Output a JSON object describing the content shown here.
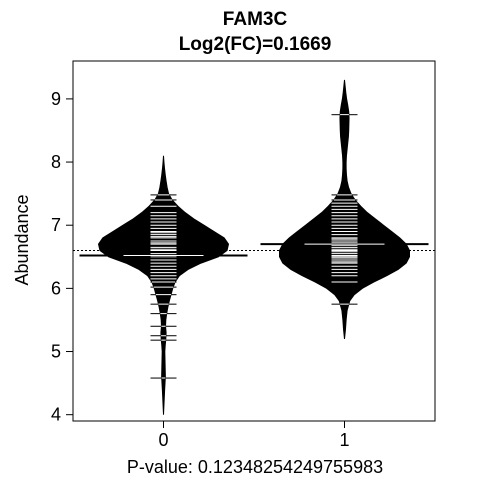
{
  "chart_data": {
    "type": "beanplot",
    "title": "FAM3C",
    "subtitle": "Log2(FC)=0.1669",
    "xlabel": "P-value: 0.12348254249755983",
    "ylabel": "Abundance",
    "categories": [
      "0",
      "1"
    ],
    "xlim": [
      0.5,
      2.5
    ],
    "ylim": [
      3.9,
      9.6
    ],
    "y_ticks": [
      4,
      5,
      6,
      7,
      8,
      9
    ],
    "overall_mean": 6.6,
    "group_means": [
      6.52,
      6.7
    ],
    "grid": false,
    "groups": [
      {
        "name": "0",
        "density": [
          [
            4.0,
            0.0
          ],
          [
            4.2,
            0.004
          ],
          [
            4.4,
            0.008
          ],
          [
            4.6,
            0.013
          ],
          [
            4.8,
            0.011
          ],
          [
            5.0,
            0.009
          ],
          [
            5.1,
            0.012
          ],
          [
            5.2,
            0.016
          ],
          [
            5.3,
            0.018
          ],
          [
            5.4,
            0.014
          ],
          [
            5.5,
            0.016
          ],
          [
            5.6,
            0.022
          ],
          [
            5.7,
            0.03
          ],
          [
            5.8,
            0.04
          ],
          [
            5.9,
            0.052
          ],
          [
            6.0,
            0.064
          ],
          [
            6.1,
            0.08
          ],
          [
            6.2,
            0.11
          ],
          [
            6.3,
            0.17
          ],
          [
            6.4,
            0.26
          ],
          [
            6.5,
            0.38
          ],
          [
            6.6,
            0.44
          ],
          [
            6.7,
            0.45
          ],
          [
            6.8,
            0.42
          ],
          [
            6.9,
            0.35
          ],
          [
            7.0,
            0.28
          ],
          [
            7.1,
            0.21
          ],
          [
            7.2,
            0.15
          ],
          [
            7.3,
            0.1
          ],
          [
            7.4,
            0.06
          ],
          [
            7.5,
            0.035
          ],
          [
            7.6,
            0.025
          ],
          [
            7.7,
            0.018
          ],
          [
            7.8,
            0.012
          ],
          [
            7.9,
            0.007
          ],
          [
            8.0,
            0.003
          ],
          [
            8.1,
            0.0
          ]
        ],
        "observations": [
          4.58,
          5.18,
          5.25,
          5.4,
          5.6,
          5.75,
          5.9,
          6.02,
          6.1,
          6.15,
          6.2,
          6.25,
          6.3,
          6.35,
          6.4,
          6.45,
          6.5,
          6.55,
          6.6,
          6.62,
          6.65,
          6.7,
          6.72,
          6.75,
          6.8,
          6.82,
          6.85,
          6.88,
          6.9,
          6.95,
          7.0,
          7.05,
          7.1,
          7.15,
          7.2,
          7.3,
          7.4,
          7.48
        ]
      },
      {
        "name": "1",
        "density": [
          [
            5.2,
            0.0
          ],
          [
            5.35,
            0.006
          ],
          [
            5.5,
            0.01
          ],
          [
            5.65,
            0.016
          ],
          [
            5.8,
            0.032
          ],
          [
            5.9,
            0.06
          ],
          [
            6.0,
            0.11
          ],
          [
            6.1,
            0.18
          ],
          [
            6.2,
            0.26
          ],
          [
            6.3,
            0.33
          ],
          [
            6.4,
            0.38
          ],
          [
            6.5,
            0.4
          ],
          [
            6.6,
            0.4
          ],
          [
            6.7,
            0.38
          ],
          [
            6.8,
            0.34
          ],
          [
            6.9,
            0.29
          ],
          [
            7.0,
            0.24
          ],
          [
            7.1,
            0.19
          ],
          [
            7.2,
            0.14
          ],
          [
            7.3,
            0.1
          ],
          [
            7.4,
            0.065
          ],
          [
            7.5,
            0.04
          ],
          [
            7.6,
            0.025
          ],
          [
            7.7,
            0.016
          ],
          [
            7.8,
            0.012
          ],
          [
            7.9,
            0.01
          ],
          [
            8.0,
            0.01
          ],
          [
            8.1,
            0.012
          ],
          [
            8.2,
            0.016
          ],
          [
            8.3,
            0.02
          ],
          [
            8.4,
            0.024
          ],
          [
            8.5,
            0.026
          ],
          [
            8.6,
            0.027
          ],
          [
            8.7,
            0.028
          ],
          [
            8.8,
            0.026
          ],
          [
            8.9,
            0.02
          ],
          [
            9.0,
            0.013
          ],
          [
            9.1,
            0.008
          ],
          [
            9.2,
            0.004
          ],
          [
            9.3,
            0.0
          ]
        ],
        "observations": [
          5.75,
          6.1,
          6.2,
          6.25,
          6.3,
          6.35,
          6.4,
          6.42,
          6.45,
          6.48,
          6.5,
          6.52,
          6.55,
          6.58,
          6.6,
          6.62,
          6.65,
          6.68,
          6.7,
          6.72,
          6.75,
          6.78,
          6.8,
          6.85,
          6.9,
          6.95,
          7.0,
          7.05,
          7.1,
          7.15,
          7.2,
          7.25,
          7.3,
          7.35,
          7.4,
          7.48,
          8.75
        ]
      }
    ]
  }
}
